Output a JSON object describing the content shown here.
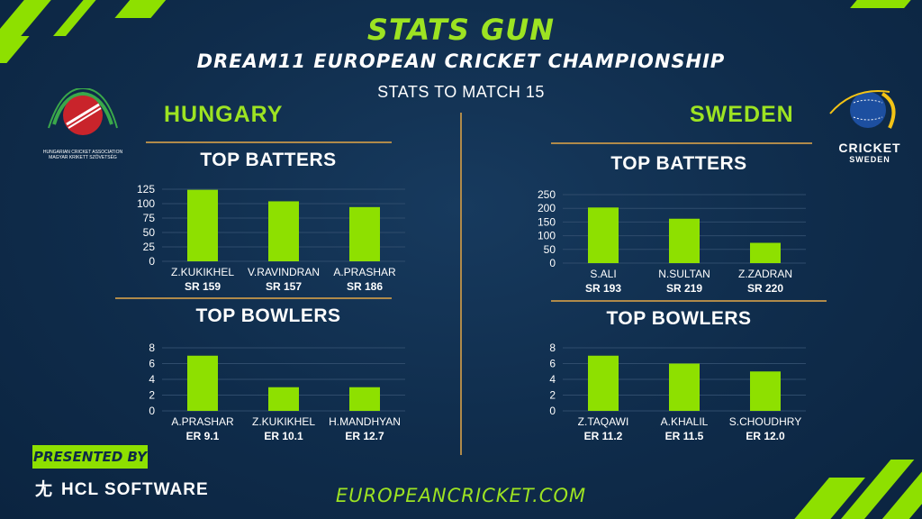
{
  "header": {
    "brand": "STATS GUN",
    "title": "DREAM11 EUROPEAN CRICKET CHAMPIONSHIP",
    "subtitle": "STATS TO MATCH 15"
  },
  "teams": {
    "left": "HUNGARY",
    "right": "SWEDEN"
  },
  "sections": {
    "top_batters": "TOP BATTERS",
    "top_bowlers": "TOP BOWLERS"
  },
  "logos": {
    "hungary_line1": "HUNGARIAN CRICKET ASSOCIATION",
    "hungary_line2": "MAGYAR KRIKETT SZÖVETSÉG",
    "sweden_line1": "CRICKET",
    "sweden_line2": "SWEDEN"
  },
  "footer": {
    "presented_by": "PRESENTED BY",
    "sponsor": "HCL SOFTWARE",
    "url": "EUROPEANCRICKET.COM"
  },
  "colors": {
    "bar": "#8ee000",
    "accent": "#9de322",
    "background": "#0f2c4b",
    "rule": "#b08a4a"
  },
  "chart_data": [
    {
      "type": "bar",
      "team": "HUNGARY",
      "title": "TOP BATTERS",
      "categories": [
        "Z.KUKIKHEL",
        "V.RAVINDRAN",
        "A.PRASHAR"
      ],
      "values": [
        124,
        104,
        94
      ],
      "sublabels": [
        "SR 159",
        "SR 157",
        "SR 186"
      ],
      "ylim": [
        0,
        125
      ],
      "yticks": [
        0,
        25,
        50,
        75,
        100,
        125
      ],
      "grid": true
    },
    {
      "type": "bar",
      "team": "HUNGARY",
      "title": "TOP BOWLERS",
      "categories": [
        "A.PRASHAR",
        "Z.KUKIKHEL",
        "H.MANDHYAN"
      ],
      "values": [
        7,
        3,
        3
      ],
      "sublabels": [
        "ER 9.1",
        "ER 10.1",
        "ER 12.7"
      ],
      "ylim": [
        0,
        8
      ],
      "yticks": [
        0,
        2,
        4,
        6,
        8
      ],
      "grid": true
    },
    {
      "type": "bar",
      "team": "SWEDEN",
      "title": "TOP BATTERS",
      "categories": [
        "S.ALI",
        "N.SULTAN",
        "Z.ZADRAN"
      ],
      "values": [
        203,
        162,
        74
      ],
      "sublabels": [
        "SR 193",
        "SR 219",
        "SR 220"
      ],
      "ylim": [
        0,
        250
      ],
      "yticks": [
        0,
        50,
        100,
        150,
        200,
        250
      ],
      "grid": true
    },
    {
      "type": "bar",
      "team": "SWEDEN",
      "title": "TOP BOWLERS",
      "categories": [
        "Z.TAQAWI",
        "A.KHALIL",
        "S.CHOUDHRY"
      ],
      "values": [
        7,
        6,
        5
      ],
      "sublabels": [
        "ER 11.2",
        "ER 11.5",
        "ER 12.0"
      ],
      "ylim": [
        0,
        8
      ],
      "yticks": [
        0,
        2,
        4,
        6,
        8
      ],
      "grid": true
    }
  ]
}
